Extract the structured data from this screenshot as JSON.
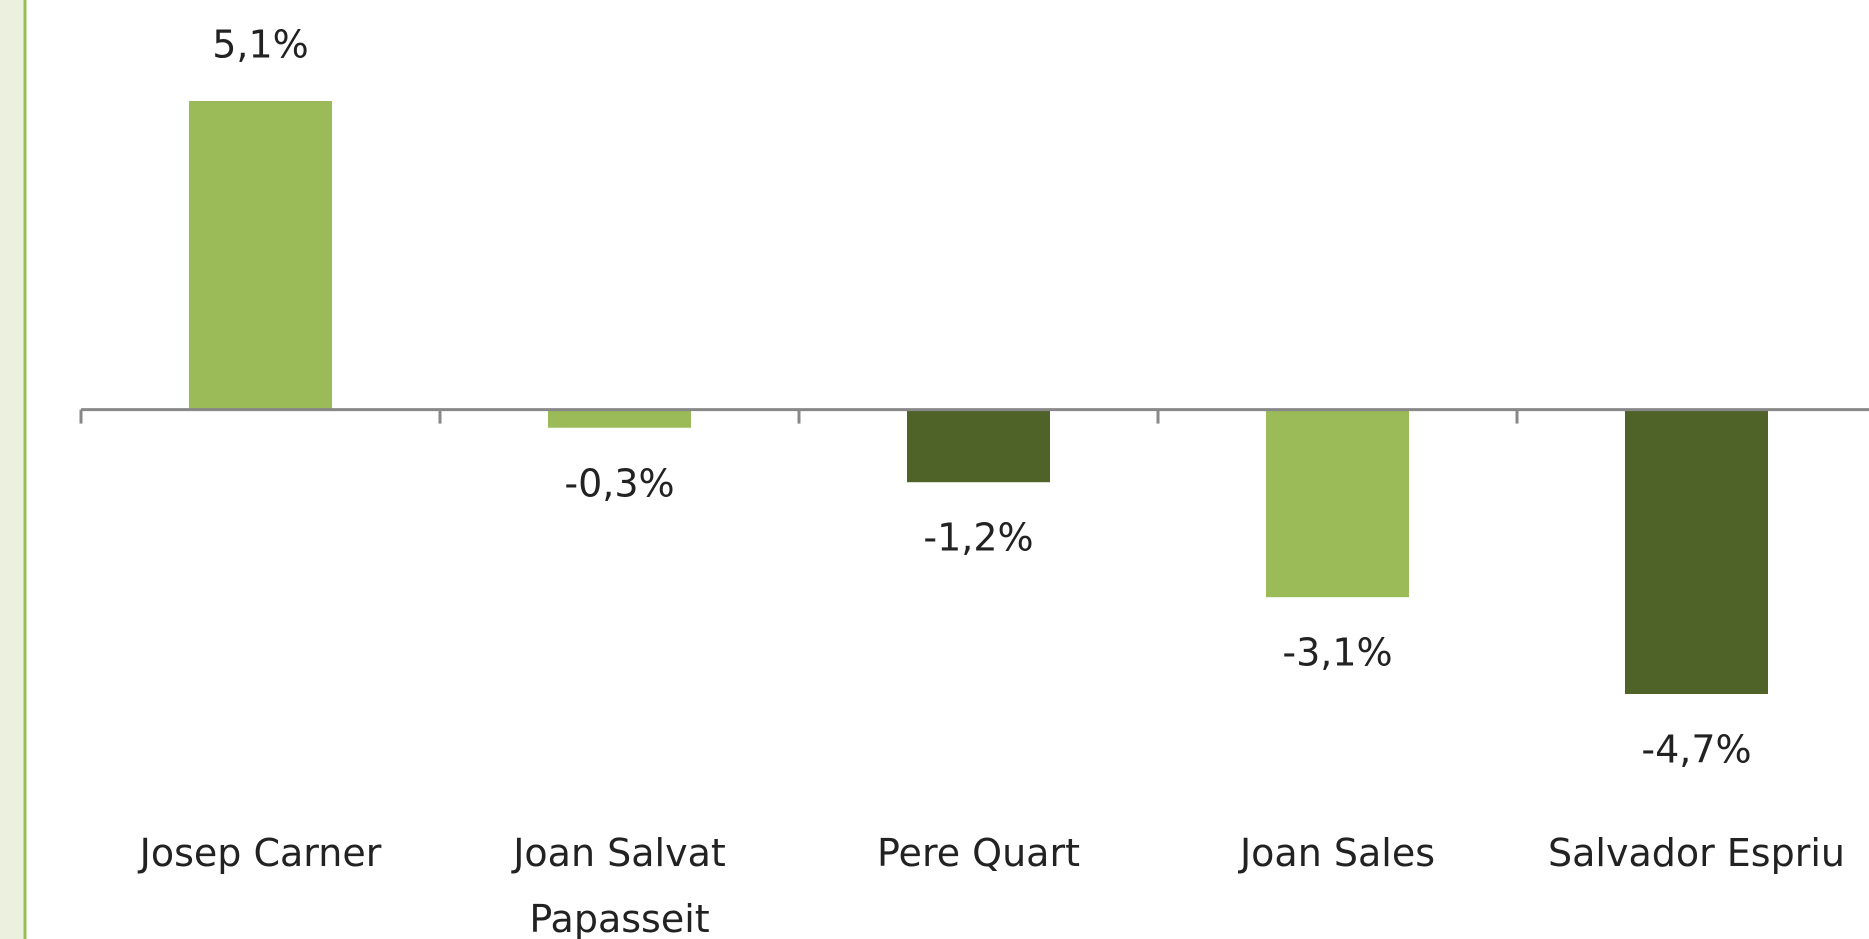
{
  "chart_data": {
    "type": "bar",
    "categories": [
      "Josep Carner",
      "Joan Salvat Papasseit",
      "Pere Quart",
      "Joan Sales",
      "Salvador Espriu"
    ],
    "values": [
      5.1,
      -0.3,
      -1.2,
      -3.1,
      -4.7
    ],
    "value_labels": [
      "5,1%",
      "-0,3%",
      "-1,2%",
      "-3,1%",
      "-4,7%"
    ],
    "colors": [
      "#9bbb59",
      "#9bbb59",
      "#4f6228",
      "#9bbb59",
      "#4f6228"
    ]
  }
}
